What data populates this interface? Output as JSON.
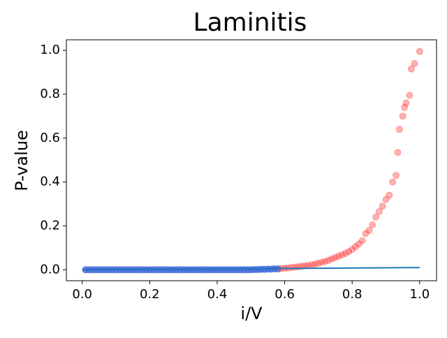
{
  "chart_data": {
    "type": "scatter",
    "title": "Laminitis",
    "x_label": "i/V",
    "y_label": "P-value",
    "xlim": [
      -0.047,
      1.05
    ],
    "ylim": [
      -0.05,
      1.048
    ],
    "xticks": [
      {
        "value": 0,
        "label": "0.0"
      },
      0.2,
      0.4,
      0.6,
      0.8,
      {
        "value": 1,
        "label": "1.0"
      }
    ],
    "yticks": [
      {
        "value": 0,
        "label": "0.0"
      },
      0.2,
      0.4,
      0.6,
      0.8,
      {
        "value": 1,
        "label": "1.0"
      }
    ],
    "series": [
      {
        "type": "scatter",
        "color": "#4169e1",
        "alpha": 0.8,
        "x": [
          0.01,
          0.02,
          0.03,
          0.04,
          0.05,
          0.06,
          0.07,
          0.08,
          0.09,
          0.1,
          0.11,
          0.12,
          0.13,
          0.14,
          0.15,
          0.16,
          0.17,
          0.18,
          0.19,
          0.2,
          0.21,
          0.22,
          0.23,
          0.24,
          0.25,
          0.26,
          0.27,
          0.28,
          0.29,
          0.3,
          0.31,
          0.32,
          0.33,
          0.34,
          0.35,
          0.36,
          0.37,
          0.38,
          0.39,
          0.4,
          0.41,
          0.42,
          0.43,
          0.44,
          0.45,
          0.46,
          0.47,
          0.48,
          0.49,
          0.5,
          0.51,
          0.52,
          0.53,
          0.54,
          0.55,
          0.56,
          0.57,
          0.58
        ],
        "values": [
          0,
          0,
          0,
          0,
          0,
          0,
          0,
          0,
          0,
          0,
          0,
          0,
          0,
          0,
          0,
          0,
          0,
          0,
          0,
          0,
          0,
          0,
          0,
          0,
          0,
          0,
          0,
          0,
          0,
          0,
          0,
          0,
          0,
          0,
          0,
          0,
          0,
          0,
          0,
          0,
          0,
          0,
          0,
          0,
          0,
          0,
          0,
          0,
          0,
          0,
          0.001,
          0.001,
          0.002,
          0.002,
          0.003,
          0.003,
          0.004,
          0.004
        ]
      },
      {
        "type": "scatter",
        "color": "#ff2020",
        "alpha": 0.35,
        "x": [
          0.59,
          0.6,
          0.61,
          0.62,
          0.63,
          0.64,
          0.65,
          0.66,
          0.67,
          0.68,
          0.69,
          0.7,
          0.71,
          0.72,
          0.73,
          0.74,
          0.75,
          0.76,
          0.77,
          0.78,
          0.79,
          0.8,
          0.81,
          0.82,
          0.83,
          0.84,
          0.85,
          0.86,
          0.87,
          0.88,
          0.89,
          0.9,
          0.91,
          0.92,
          0.93,
          0.935,
          0.94,
          0.95,
          0.955,
          0.96,
          0.97,
          0.975,
          0.985,
          1.0
        ],
        "values": [
          0.005,
          0.007,
          0.008,
          0.01,
          0.012,
          0.014,
          0.016,
          0.018,
          0.02,
          0.023,
          0.026,
          0.03,
          0.034,
          0.038,
          0.043,
          0.05,
          0.056,
          0.062,
          0.068,
          0.075,
          0.083,
          0.093,
          0.105,
          0.118,
          0.133,
          0.165,
          0.18,
          0.205,
          0.24,
          0.265,
          0.29,
          0.32,
          0.34,
          0.4,
          0.43,
          0.535,
          0.64,
          0.7,
          0.74,
          0.76,
          0.795,
          0.915,
          0.94,
          0.995
        ]
      },
      {
        "type": "line",
        "color": "#1f77b4",
        "x": [
          0,
          1
        ],
        "values": [
          0,
          0.01
        ]
      }
    ]
  }
}
